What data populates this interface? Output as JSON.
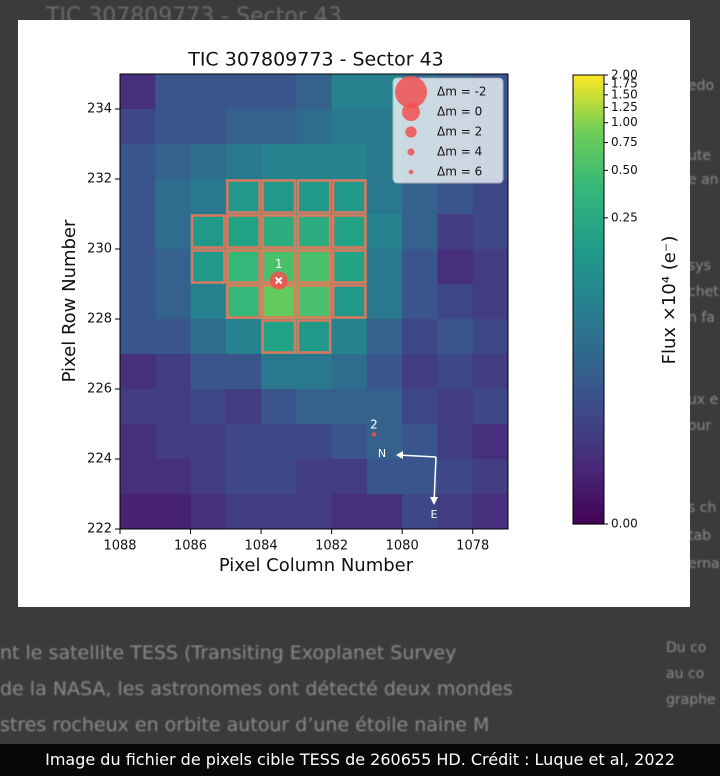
{
  "background": {
    "title": "TIC 307809773 - Sector 43",
    "article_lines": [
      "nt le satellite TESS (Transiting Exoplanet Survey",
      "de la NASA, les astronomes ont détecté deux mondes",
      "stres rocheux en orbite autour d’une étoile naine M"
    ],
    "side_lines": [
      "edo",
      "ute",
      "e an",
      "sys",
      "chet",
      "n fa",
      "ux e",
      "our",
      "s ch",
      "tab",
      "erna",
      "Du co",
      "au co",
      "graphe"
    ]
  },
  "caption": "Image du fichier de pixels cible TESS de 260655 HD. Crédit : Luque et al, 2022",
  "chart_data": {
    "type": "heatmap",
    "title": "TIC 307809773 - Sector 43",
    "xlabel": "Pixel Column Number",
    "ylabel": "Pixel Row Number",
    "xlim": [
      1088,
      1077
    ],
    "ylim": [
      222,
      235
    ],
    "xticks": [
      1088,
      1086,
      1084,
      1082,
      1080,
      1078
    ],
    "yticks": [
      222,
      224,
      226,
      228,
      230,
      232,
      234
    ],
    "colormap": "viridis",
    "color_scale": "log",
    "clim": [
      0,
      2
    ],
    "colorbar_label": "Flux ×10⁴ (e⁻)",
    "colorbar_ticks": [
      {
        "value": 0,
        "label": "0.00"
      },
      {
        "value": 0.25,
        "label": "0.25"
      },
      {
        "value": 0.5,
        "label": "0.50"
      },
      {
        "value": 0.75,
        "label": "0.75"
      },
      {
        "value": 1,
        "label": "1.00"
      },
      {
        "value": 1.25,
        "label": "1.25"
      },
      {
        "value": 1.5,
        "label": "1.50"
      },
      {
        "value": 1.75,
        "label": "1.75"
      },
      {
        "value": 2,
        "label": "2.00"
      }
    ],
    "values": [
      [
        0.005,
        0.018,
        0.018,
        0.018,
        0.018,
        0.026,
        0.074,
        0.074,
        0.037,
        0.026,
        0.018
      ],
      [
        0.012,
        0.018,
        0.018,
        0.026,
        0.026,
        0.037,
        0.053,
        0.053,
        0.037,
        0.026,
        0.018
      ],
      [
        0.018,
        0.026,
        0.037,
        0.053,
        0.074,
        0.074,
        0.074,
        0.053,
        0.037,
        0.026,
        0.018
      ],
      [
        0.018,
        0.037,
        0.053,
        0.145,
        0.145,
        0.145,
        0.145,
        0.053,
        0.026,
        0.018,
        0.012
      ],
      [
        0.018,
        0.037,
        0.145,
        0.2,
        0.28,
        0.28,
        0.2,
        0.074,
        0.026,
        0.008,
        0.012
      ],
      [
        0.018,
        0.026,
        0.145,
        0.39,
        0.54,
        0.54,
        0.2,
        0.053,
        0.018,
        0.005,
        0.008
      ],
      [
        0.018,
        0.026,
        0.074,
        0.39,
        0.76,
        0.54,
        0.145,
        0.053,
        0.018,
        0.012,
        0.008
      ],
      [
        0.018,
        0.018,
        0.037,
        0.074,
        0.2,
        0.145,
        0.074,
        0.026,
        0.012,
        0.018,
        0.012
      ],
      [
        0.005,
        0.008,
        0.018,
        0.018,
        0.053,
        0.053,
        0.037,
        0.018,
        0.008,
        0.012,
        0.008
      ],
      [
        0.008,
        0.008,
        0.012,
        0.008,
        0.018,
        0.026,
        0.026,
        0.026,
        0.012,
        0.008,
        0.012
      ],
      [
        0.005,
        0.008,
        0.008,
        0.012,
        0.012,
        0.012,
        0.018,
        0.026,
        0.018,
        0.008,
        0.005
      ],
      [
        0.005,
        0.005,
        0.008,
        0.012,
        0.012,
        0.008,
        0.008,
        0.018,
        0.018,
        0.012,
        0.008
      ],
      [
        0.003,
        0.003,
        0.005,
        0.008,
        0.008,
        0.008,
        0.005,
        0.005,
        0.012,
        0.008,
        0.005
      ]
    ],
    "aperture_color": "#f0735a",
    "aperture": [
      [
        1084.5,
        231.5
      ],
      [
        1083.5,
        231.5
      ],
      [
        1082.5,
        231.5
      ],
      [
        1081.5,
        231.5
      ],
      [
        1085.5,
        230.5
      ],
      [
        1084.5,
        230.5
      ],
      [
        1083.5,
        230.5
      ],
      [
        1082.5,
        230.5
      ],
      [
        1081.5,
        230.5
      ],
      [
        1085.5,
        229.5
      ],
      [
        1084.5,
        229.5
      ],
      [
        1083.5,
        229.5
      ],
      [
        1082.5,
        229.5
      ],
      [
        1081.5,
        229.5
      ],
      [
        1084.5,
        228.5
      ],
      [
        1083.5,
        228.5
      ],
      [
        1082.5,
        228.5
      ],
      [
        1081.5,
        228.5
      ],
      [
        1083.5,
        227.5
      ],
      [
        1082.5,
        227.5
      ]
    ],
    "stars": [
      {
        "label": "1",
        "x": 1083.5,
        "y": 229.1,
        "dm": 0
      },
      {
        "label": "2",
        "x": 1080.8,
        "y": 224.7,
        "dm": 6
      }
    ],
    "legend_position": "upper right",
    "legend": [
      {
        "label": "Δm = -2",
        "dm": -2
      },
      {
        "label": "Δm = 0",
        "dm": 0
      },
      {
        "label": "Δm = 2",
        "dm": 2
      },
      {
        "label": "Δm = 4",
        "dm": 4
      },
      {
        "label": "Δm = 6",
        "dm": 6
      }
    ],
    "compass": {
      "north": "N",
      "east": "E"
    }
  }
}
